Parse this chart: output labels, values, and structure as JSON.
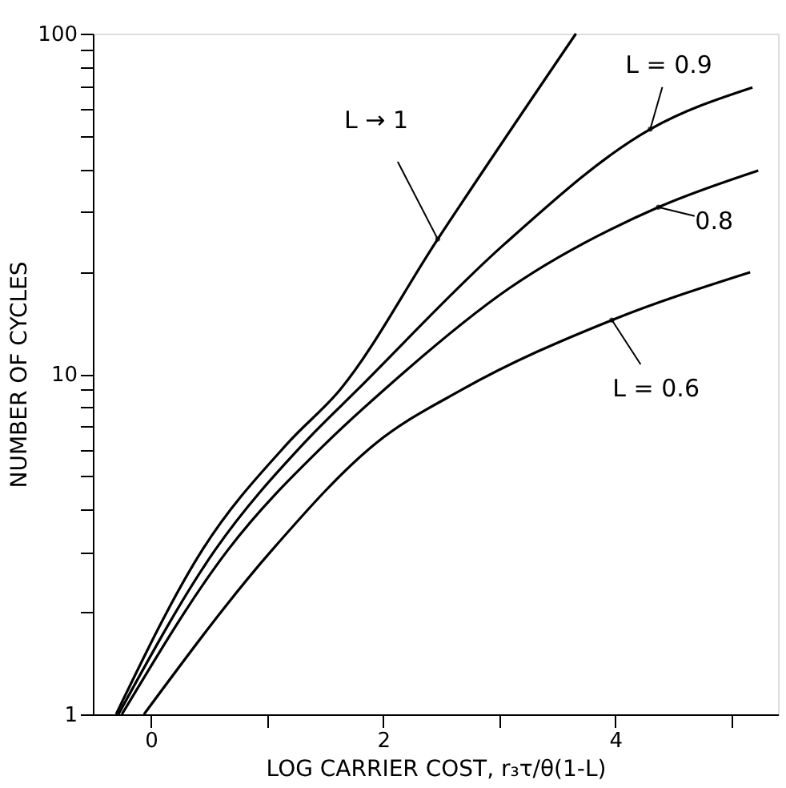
{
  "chart_data": {
    "type": "line",
    "xlabel": "LOG CARRIER COST, r₃τ/θ(1-L)",
    "ylabel": "NUMBER OF CYCLES",
    "log": "y",
    "grid": false,
    "marker": "none",
    "line_style": "solid",
    "xlim": [
      -0.5,
      5.4
    ],
    "ylim": [
      1,
      100
    ],
    "xticks": [
      0,
      {
        "value": 1,
        "label": null
      },
      2,
      {
        "value": 3,
        "label": null
      },
      4,
      {
        "value": 5,
        "label": null
      }
    ],
    "yticks": [
      1,
      {
        "value": 2,
        "label": null
      },
      {
        "value": 3,
        "label": null
      },
      {
        "value": 4,
        "label": null
      },
      {
        "value": 5,
        "label": null
      },
      {
        "value": 6,
        "label": null
      },
      {
        "value": 7,
        "label": null
      },
      {
        "value": 8,
        "label": null
      },
      {
        "value": 9,
        "label": null
      },
      10,
      {
        "value": 20,
        "label": null
      },
      {
        "value": 30,
        "label": null
      },
      {
        "value": 40,
        "label": null
      },
      {
        "value": 50,
        "label": null
      },
      {
        "value": 60,
        "label": null
      },
      {
        "value": 70,
        "label": null
      },
      {
        "value": 80,
        "label": null
      },
      {
        "value": 90,
        "label": null
      },
      100
    ],
    "series": [
      {
        "color": "#000000",
        "x": [
          -0.3,
          0.44,
          1.18,
          1.63,
          2.47,
          3.66
        ],
        "values": [
          1,
          3.03,
          6.27,
          9.0,
          24.9,
          100
        ]
      },
      {
        "color": "#000000",
        "x": [
          -0.28,
          0.55,
          1.32,
          1.78,
          3.04,
          4.3,
          5.18
        ],
        "values": [
          1,
          3.03,
          6.27,
          9.0,
          24,
          52.4,
          69.5
        ]
      },
      {
        "color": "#000000",
        "x": [
          -0.25,
          0.66,
          1.51,
          2.01,
          3.09,
          4.37,
          5.23
        ],
        "values": [
          1,
          3.03,
          6.27,
          9.0,
          17.9,
          30.9,
          39.6
        ]
      },
      {
        "color": "#000000",
        "x": [
          -0.06,
          1.04,
          1.94,
          2.68,
          3.97,
          5.16
        ],
        "values": [
          1,
          3.03,
          6.27,
          9.0,
          14.4,
          19.9
        ]
      }
    ],
    "annotations": [
      {
        "text": "L → 1",
        "x": 2.47,
        "y": 24.9
      },
      {
        "text": "L = 0.9",
        "x": 4.3,
        "y": 52.4
      },
      {
        "text": "0.8",
        "x": 4.37,
        "y": 30.9
      },
      {
        "text": "L = 0.6",
        "x": 3.97,
        "y": 14.4
      }
    ]
  }
}
